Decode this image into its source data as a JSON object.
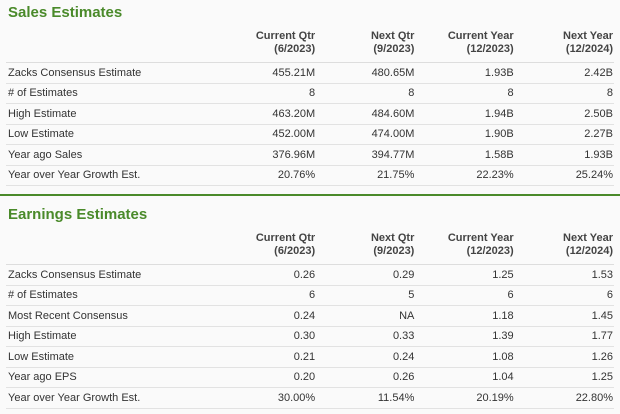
{
  "colors": {
    "accent": "#4a8a2a"
  },
  "sales": {
    "title": "Sales Estimates",
    "headers": [
      [
        "Current Qtr",
        "(6/2023)"
      ],
      [
        "Next Qtr",
        "(9/2023)"
      ],
      [
        "Current Year",
        "(12/2023)"
      ],
      [
        "Next Year",
        "(12/2024)"
      ]
    ],
    "rows": [
      {
        "label": "Zacks Consensus Estimate",
        "values": [
          "455.21M",
          "480.65M",
          "1.93B",
          "2.42B"
        ]
      },
      {
        "label": "# of Estimates",
        "values": [
          "8",
          "8",
          "8",
          "8"
        ]
      },
      {
        "label": "High Estimate",
        "values": [
          "463.20M",
          "484.60M",
          "1.94B",
          "2.50B"
        ]
      },
      {
        "label": "Low Estimate",
        "values": [
          "452.00M",
          "474.00M",
          "1.90B",
          "2.27B"
        ]
      },
      {
        "label": "Year ago Sales",
        "values": [
          "376.96M",
          "394.77M",
          "1.58B",
          "1.93B"
        ]
      },
      {
        "label": "Year over Year Growth Est.",
        "values": [
          "20.76%",
          "21.75%",
          "22.23%",
          "25.24%"
        ]
      }
    ]
  },
  "earnings": {
    "title": "Earnings Estimates",
    "headers": [
      [
        "Current Qtr",
        "(6/2023)"
      ],
      [
        "Next Qtr",
        "(9/2023)"
      ],
      [
        "Current Year",
        "(12/2023)"
      ],
      [
        "Next Year",
        "(12/2024)"
      ]
    ],
    "rows": [
      {
        "label": "Zacks Consensus Estimate",
        "values": [
          "0.26",
          "0.29",
          "1.25",
          "1.53"
        ]
      },
      {
        "label": "# of Estimates",
        "values": [
          "6",
          "5",
          "6",
          "6"
        ]
      },
      {
        "label": "Most Recent Consensus",
        "values": [
          "0.24",
          "NA",
          "1.18",
          "1.45"
        ]
      },
      {
        "label": "High Estimate",
        "values": [
          "0.30",
          "0.33",
          "1.39",
          "1.77"
        ]
      },
      {
        "label": "Low Estimate",
        "values": [
          "0.21",
          "0.24",
          "1.08",
          "1.26"
        ]
      },
      {
        "label": "Year ago EPS",
        "values": [
          "0.20",
          "0.26",
          "1.04",
          "1.25"
        ]
      },
      {
        "label": "Year over Year Growth Est.",
        "values": [
          "30.00%",
          "11.54%",
          "20.19%",
          "22.80%"
        ]
      }
    ]
  }
}
